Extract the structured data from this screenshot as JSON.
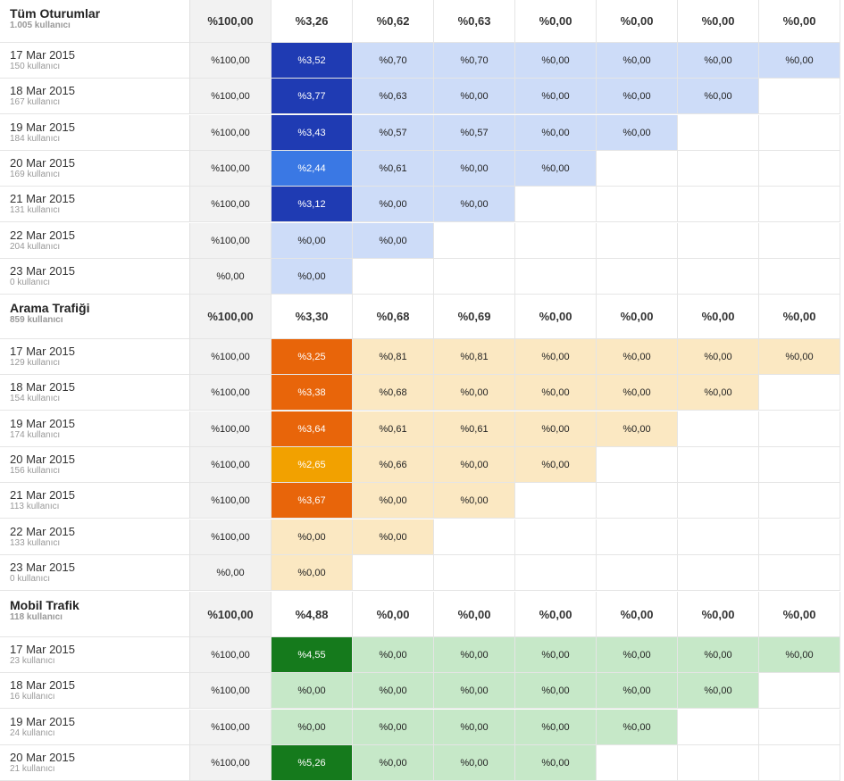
{
  "palettes": {
    "blue": {
      "dark": "#1f3bb3",
      "mid": "#3a78e4",
      "light": "#cddcf8"
    },
    "orange": {
      "dark": "#e8650a",
      "mid": "#f2a100",
      "light": "#fbe8c2"
    },
    "green": {
      "dark": "#157a1c",
      "mid": "#2f9a35",
      "light": "#c6e8c8"
    }
  },
  "segments": [
    {
      "name": "Tüm Oturumlar",
      "users": "1.005 kullanıcı",
      "palette": "blue",
      "summary": [
        "%100,00",
        "%3,26",
        "%0,62",
        "%0,63",
        "%0,00",
        "%0,00",
        "%0,00",
        "%0,00"
      ],
      "rows": [
        {
          "date": "17 Mar 2015",
          "users": "150 kullanıcı",
          "values": [
            "%100,00",
            "%3,52",
            "%0,70",
            "%0,70",
            "%0,00",
            "%0,00",
            "%0,00",
            "%0,00"
          ],
          "shade": [
            "dark",
            "light",
            "light",
            "light",
            "light",
            "light",
            "light"
          ]
        },
        {
          "date": "18 Mar 2015",
          "users": "167 kullanıcı",
          "values": [
            "%100,00",
            "%3,77",
            "%0,63",
            "%0,00",
            "%0,00",
            "%0,00",
            "%0,00"
          ],
          "shade": [
            "dark",
            "light",
            "light",
            "light",
            "light",
            "light"
          ]
        },
        {
          "date": "19 Mar 2015",
          "users": "184 kullanıcı",
          "values": [
            "%100,00",
            "%3,43",
            "%0,57",
            "%0,57",
            "%0,00",
            "%0,00"
          ],
          "shade": [
            "dark",
            "light",
            "light",
            "light",
            "light"
          ]
        },
        {
          "date": "20 Mar 2015",
          "users": "169 kullanıcı",
          "values": [
            "%100,00",
            "%2,44",
            "%0,61",
            "%0,00",
            "%0,00"
          ],
          "shade": [
            "mid",
            "light",
            "light",
            "light"
          ]
        },
        {
          "date": "21 Mar 2015",
          "users": "131 kullanıcı",
          "values": [
            "%100,00",
            "%3,12",
            "%0,00",
            "%0,00"
          ],
          "shade": [
            "dark",
            "light",
            "light"
          ]
        },
        {
          "date": "22 Mar 2015",
          "users": "204 kullanıcı",
          "values": [
            "%100,00",
            "%0,00",
            "%0,00"
          ],
          "shade": [
            "light",
            "light"
          ]
        },
        {
          "date": "23 Mar 2015",
          "users": "0 kullanıcı",
          "values": [
            "%0,00",
            "%0,00"
          ],
          "shade": [
            "light"
          ]
        }
      ]
    },
    {
      "name": "Arama Trafiği",
      "users": "859 kullanıcı",
      "palette": "orange",
      "summary": [
        "%100,00",
        "%3,30",
        "%0,68",
        "%0,69",
        "%0,00",
        "%0,00",
        "%0,00",
        "%0,00"
      ],
      "rows": [
        {
          "date": "17 Mar 2015",
          "users": "129 kullanıcı",
          "values": [
            "%100,00",
            "%3,25",
            "%0,81",
            "%0,81",
            "%0,00",
            "%0,00",
            "%0,00",
            "%0,00"
          ],
          "shade": [
            "dark",
            "light",
            "light",
            "light",
            "light",
            "light",
            "light"
          ]
        },
        {
          "date": "18 Mar 2015",
          "users": "154 kullanıcı",
          "values": [
            "%100,00",
            "%3,38",
            "%0,68",
            "%0,00",
            "%0,00",
            "%0,00",
            "%0,00"
          ],
          "shade": [
            "dark",
            "light",
            "light",
            "light",
            "light",
            "light"
          ]
        },
        {
          "date": "19 Mar 2015",
          "users": "174 kullanıcı",
          "values": [
            "%100,00",
            "%3,64",
            "%0,61",
            "%0,61",
            "%0,00",
            "%0,00"
          ],
          "shade": [
            "dark",
            "light",
            "light",
            "light",
            "light"
          ]
        },
        {
          "date": "20 Mar 2015",
          "users": "156 kullanıcı",
          "values": [
            "%100,00",
            "%2,65",
            "%0,66",
            "%0,00",
            "%0,00"
          ],
          "shade": [
            "mid",
            "light",
            "light",
            "light"
          ]
        },
        {
          "date": "21 Mar 2015",
          "users": "113 kullanıcı",
          "values": [
            "%100,00",
            "%3,67",
            "%0,00",
            "%0,00"
          ],
          "shade": [
            "dark",
            "light",
            "light"
          ]
        },
        {
          "date": "22 Mar 2015",
          "users": "133 kullanıcı",
          "values": [
            "%100,00",
            "%0,00",
            "%0,00"
          ],
          "shade": [
            "light",
            "light"
          ]
        },
        {
          "date": "23 Mar 2015",
          "users": "0 kullanıcı",
          "values": [
            "%0,00",
            "%0,00"
          ],
          "shade": [
            "light"
          ]
        }
      ]
    },
    {
      "name": "Mobil Trafik",
      "users": "118 kullanıcı",
      "palette": "green",
      "summary": [
        "%100,00",
        "%4,88",
        "%0,00",
        "%0,00",
        "%0,00",
        "%0,00",
        "%0,00",
        "%0,00"
      ],
      "rows": [
        {
          "date": "17 Mar 2015",
          "users": "23 kullanıcı",
          "values": [
            "%100,00",
            "%4,55",
            "%0,00",
            "%0,00",
            "%0,00",
            "%0,00",
            "%0,00",
            "%0,00"
          ],
          "shade": [
            "dark",
            "light",
            "light",
            "light",
            "light",
            "light",
            "light"
          ]
        },
        {
          "date": "18 Mar 2015",
          "users": "16 kullanıcı",
          "values": [
            "%100,00",
            "%0,00",
            "%0,00",
            "%0,00",
            "%0,00",
            "%0,00",
            "%0,00"
          ],
          "shade": [
            "light",
            "light",
            "light",
            "light",
            "light",
            "light"
          ]
        },
        {
          "date": "19 Mar 2015",
          "users": "24 kullanıcı",
          "values": [
            "%100,00",
            "%0,00",
            "%0,00",
            "%0,00",
            "%0,00",
            "%0,00"
          ],
          "shade": [
            "light",
            "light",
            "light",
            "light",
            "light"
          ]
        },
        {
          "date": "20 Mar 2015",
          "users": "21 kullanıcı",
          "values": [
            "%100,00",
            "%5,26",
            "%0,00",
            "%0,00",
            "%0,00"
          ],
          "shade": [
            "dark",
            "light",
            "light",
            "light"
          ]
        }
      ]
    }
  ]
}
